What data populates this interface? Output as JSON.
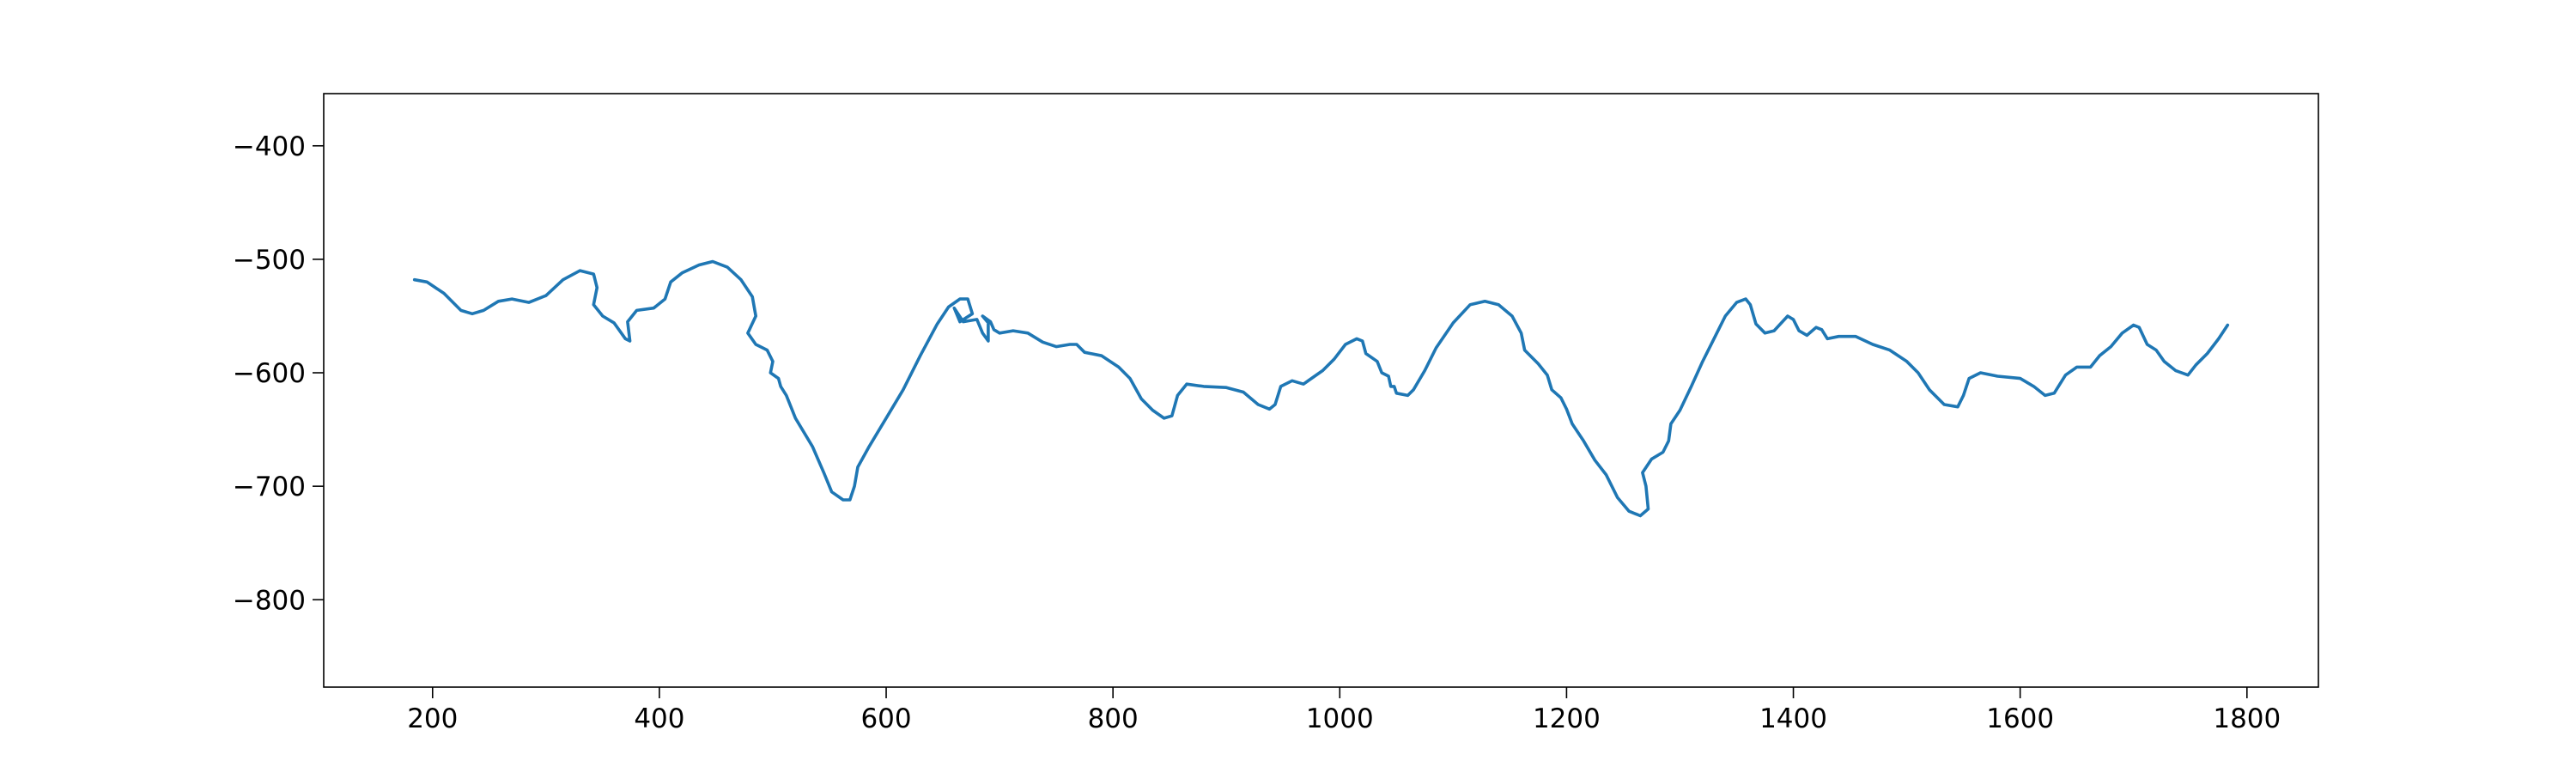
{
  "chart_data": {
    "type": "line",
    "xlim": [
      104,
      1863
    ],
    "ylim": [
      -877,
      -354
    ],
    "xticks": [
      200,
      400,
      600,
      800,
      1000,
      1200,
      1400,
      1600,
      1800
    ],
    "yticks": [
      {
        "value": -400,
        "label": "−400"
      },
      {
        "value": -500,
        "label": "−500"
      },
      {
        "value": -600,
        "label": "−600"
      },
      {
        "value": -700,
        "label": "−700"
      },
      {
        "value": -800,
        "label": "−800"
      }
    ],
    "series": [
      {
        "color": "#1f77b4",
        "x": [
          184,
          195,
          210,
          225,
          235,
          245,
          258,
          270,
          285,
          300,
          315,
          330,
          342,
          345,
          342,
          350,
          360,
          370,
          374,
          372,
          380,
          395,
          405,
          410,
          420,
          435,
          447,
          460,
          472,
          482,
          485,
          478,
          485,
          495,
          500,
          498,
          505,
          507,
          512,
          520,
          535,
          545,
          552,
          562,
          568,
          572,
          575,
          585,
          600,
          615,
          630,
          645,
          655,
          665,
          672,
          676,
          665,
          660,
          668,
          680,
          685,
          690,
          690,
          685,
          692,
          695,
          700,
          712,
          725,
          738,
          750,
          762,
          768,
          775,
          790,
          805,
          815,
          825,
          835,
          845,
          852,
          857,
          865,
          880,
          900,
          915,
          928,
          938,
          943,
          948,
          958,
          968,
          975,
          985,
          995,
          1005,
          1015,
          1020,
          1023,
          1033,
          1037,
          1043,
          1045,
          1048,
          1050,
          1060,
          1065,
          1075,
          1085,
          1100,
          1115,
          1128,
          1140,
          1152,
          1160,
          1163,
          1175,
          1183,
          1187,
          1195,
          1200,
          1205,
          1215,
          1225,
          1235,
          1245,
          1255,
          1265,
          1272,
          1270,
          1267,
          1275,
          1285,
          1290,
          1292,
          1300,
          1310,
          1320,
          1330,
          1340,
          1350,
          1358,
          1362,
          1367,
          1375,
          1383,
          1395,
          1400,
          1405,
          1412,
          1420,
          1425,
          1430,
          1440,
          1455,
          1470,
          1485,
          1500,
          1510,
          1520,
          1533,
          1545,
          1550,
          1555,
          1565,
          1580,
          1600,
          1612,
          1622,
          1630,
          1640,
          1650,
          1662,
          1670,
          1680,
          1690,
          1700,
          1705,
          1712,
          1720,
          1727,
          1737,
          1748,
          1755,
          1765,
          1775,
          1783
        ],
        "values": [
          -518,
          -520,
          -530,
          -545,
          -548,
          -545,
          -537,
          -535,
          -538,
          -532,
          -518,
          -510,
          -513,
          -525,
          -540,
          -550,
          -556,
          -570,
          -572,
          -555,
          -545,
          -543,
          -535,
          -520,
          -512,
          -505,
          -502,
          -507,
          -518,
          -533,
          -550,
          -565,
          -575,
          -580,
          -590,
          -600,
          -605,
          -612,
          -620,
          -640,
          -665,
          -688,
          -705,
          -712,
          -712,
          -700,
          -683,
          -665,
          -640,
          -615,
          -585,
          -557,
          -542,
          -535,
          -535,
          -548,
          -555,
          -543,
          -555,
          -553,
          -565,
          -572,
          -556,
          -550,
          -555,
          -562,
          -565,
          -563,
          -565,
          -573,
          -577,
          -575,
          -575,
          -582,
          -585,
          -595,
          -605,
          -623,
          -633,
          -640,
          -638,
          -620,
          -610,
          -612,
          -613,
          -617,
          -628,
          -632,
          -628,
          -612,
          -607,
          -610,
          -605,
          -598,
          -588,
          -575,
          -570,
          -572,
          -583,
          -590,
          -600,
          -603,
          -612,
          -612,
          -618,
          -620,
          -615,
          -598,
          -578,
          -556,
          -540,
          -537,
          -540,
          -550,
          -565,
          -580,
          -592,
          -602,
          -615,
          -622,
          -632,
          -645,
          -660,
          -677,
          -690,
          -710,
          -722,
          -726,
          -720,
          -700,
          -688,
          -676,
          -670,
          -660,
          -645,
          -633,
          -612,
          -590,
          -570,
          -550,
          -538,
          -535,
          -540,
          -557,
          -565,
          -563,
          -550,
          -553,
          -563,
          -567,
          -560,
          -562,
          -570,
          -568,
          -568,
          -575,
          -580,
          -590,
          -600,
          -615,
          -628,
          -630,
          -620,
          -605,
          -600,
          -603,
          -605,
          -612,
          -620,
          -618,
          -602,
          -595,
          -595,
          -585,
          -577,
          -565,
          -558,
          -560,
          -575,
          -580,
          -590,
          -598,
          -602,
          -593,
          -583,
          -570,
          -558
        ]
      }
    ]
  }
}
